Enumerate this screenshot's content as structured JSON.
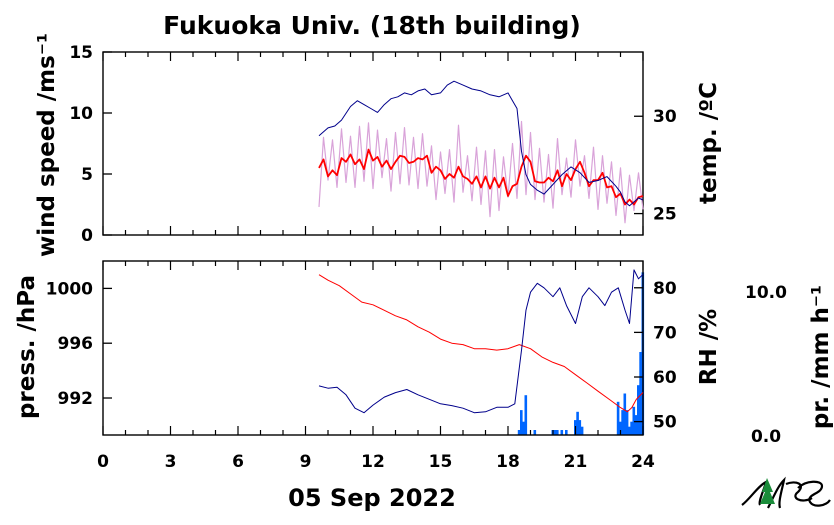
{
  "figure": {
    "title": "Fukuoka Univ. (18th building)",
    "date_label": "05 Sep 2022"
  },
  "colors": {
    "wind_raw": "#d9a3d9",
    "wind_mean": "#ff0000",
    "temperature": "#00008b",
    "pressure": "#ff0000",
    "humidity": "#00008b",
    "precipitation": "#0066ff",
    "axis": "#000000"
  },
  "logo": {
    "text": "NES"
  },
  "chart_data": [
    {
      "type": "line",
      "title": "",
      "x_unit": "hour",
      "xlim": [
        0,
        24
      ],
      "x_ticks": [
        0,
        3,
        6,
        9,
        12,
        15,
        18,
        21,
        24
      ],
      "left_axis": {
        "label": "wind speed /ms⁻¹",
        "ylim": [
          0,
          15
        ],
        "ticks": [
          0,
          5,
          10,
          15
        ]
      },
      "right_axis": {
        "label": "temp. /ºC",
        "ylim": [
          23.9,
          33.3
        ],
        "ticks": [
          25,
          30
        ]
      },
      "series": [
        {
          "axis": "left",
          "style": "raw",
          "x": [
            9.6,
            9.8,
            10.0,
            10.2,
            10.4,
            10.6,
            10.8,
            11.0,
            11.2,
            11.4,
            11.6,
            11.8,
            12.0,
            12.2,
            12.4,
            12.6,
            12.8,
            13.0,
            13.2,
            13.4,
            13.6,
            13.8,
            14.0,
            14.2,
            14.4,
            14.6,
            14.8,
            15.0,
            15.2,
            15.4,
            15.6,
            15.8,
            16.0,
            16.2,
            16.4,
            16.6,
            16.8,
            17.0,
            17.2,
            17.4,
            17.6,
            17.8,
            18.0,
            18.2,
            18.4,
            18.6,
            18.8,
            19.0,
            19.2,
            19.4,
            19.6,
            19.8,
            20.0,
            20.2,
            20.4,
            20.6,
            20.8,
            21.0,
            21.2,
            21.4,
            21.6,
            21.8,
            22.0,
            22.2,
            22.4,
            22.6,
            22.8,
            23.0,
            23.2,
            23.4,
            23.6,
            23.8,
            24.0
          ],
          "values": [
            2.3,
            8.0,
            4.5,
            7.8,
            3.9,
            8.7,
            4.3,
            8.1,
            3.9,
            8.9,
            4.4,
            9.2,
            3.8,
            8.6,
            4.7,
            7.9,
            3.6,
            8.4,
            4.2,
            8.8,
            4.1,
            8.0,
            3.8,
            8.3,
            4.0,
            7.3,
            2.9,
            6.8,
            3.4,
            7.0,
            2.7,
            9.0,
            3.5,
            6.5,
            2.8,
            7.2,
            2.5,
            6.9,
            1.5,
            7.0,
            2.0,
            6.4,
            3.1,
            7.5,
            3.0,
            9.3,
            3.3,
            8.4,
            2.9,
            7.1,
            2.7,
            6.6,
            2.2,
            7.9,
            3.3,
            6.3,
            3.1,
            7.8,
            4.0,
            6.5,
            3.0,
            7.2,
            2.1,
            6.5,
            2.6,
            6.0,
            1.6,
            5.5,
            1.0,
            4.9,
            2.0,
            5.1,
            2.1
          ]
        },
        {
          "axis": "left",
          "style": "mean",
          "x": [
            9.6,
            9.8,
            10.0,
            10.2,
            10.4,
            10.6,
            10.8,
            11.0,
            11.2,
            11.4,
            11.6,
            11.8,
            12.0,
            12.2,
            12.4,
            12.6,
            12.8,
            13.0,
            13.2,
            13.4,
            13.6,
            13.8,
            14.0,
            14.2,
            14.4,
            14.6,
            14.8,
            15.0,
            15.2,
            15.4,
            15.6,
            15.8,
            16.0,
            16.2,
            16.4,
            16.6,
            16.8,
            17.0,
            17.2,
            17.4,
            17.6,
            17.8,
            18.0,
            18.2,
            18.4,
            18.6,
            18.8,
            19.0,
            19.2,
            19.4,
            19.6,
            19.8,
            20.0,
            20.2,
            20.4,
            20.6,
            20.8,
            21.0,
            21.2,
            21.4,
            21.6,
            21.8,
            22.0,
            22.2,
            22.4,
            22.6,
            22.8,
            23.0,
            23.2,
            23.4,
            23.6,
            23.8,
            24.0
          ],
          "values": [
            5.5,
            6.2,
            4.8,
            5.3,
            4.9,
            6.3,
            6.0,
            6.6,
            5.8,
            6.2,
            5.4,
            7.0,
            6.1,
            6.4,
            5.6,
            6.1,
            5.4,
            6.0,
            6.5,
            6.4,
            5.9,
            6.0,
            6.3,
            6.2,
            6.5,
            5.1,
            5.6,
            5.3,
            4.6,
            5.0,
            4.7,
            5.6,
            4.8,
            4.6,
            4.2,
            4.8,
            3.9,
            4.8,
            3.8,
            4.7,
            3.9,
            4.7,
            3.2,
            4.0,
            4.2,
            5.6,
            6.5,
            6.0,
            4.4,
            4.3,
            4.3,
            4.7,
            4.4,
            5.3,
            4.0,
            5.0,
            4.5,
            5.4,
            6.0,
            5.1,
            4.0,
            4.5,
            4.5,
            5.1,
            3.9,
            4.0,
            3.1,
            3.4,
            2.5,
            2.9,
            2.5,
            3.1,
            3.2
          ]
        },
        {
          "axis": "right",
          "style": "temperature",
          "x": [
            9.6,
            10.0,
            10.3,
            10.6,
            11.0,
            11.3,
            11.6,
            11.9,
            12.2,
            12.5,
            12.8,
            13.1,
            13.4,
            13.7,
            14.0,
            14.3,
            14.6,
            15.0,
            15.3,
            15.6,
            16.0,
            16.4,
            16.8,
            17.2,
            17.6,
            18.0,
            18.2,
            18.4,
            18.6,
            18.8,
            19.0,
            19.3,
            19.6,
            20.0,
            20.4,
            20.8,
            21.2,
            21.6,
            22.0,
            22.4,
            22.8,
            23.0,
            23.2,
            23.4,
            23.6,
            23.8,
            24.0
          ],
          "values": [
            29.0,
            29.4,
            29.5,
            29.8,
            30.5,
            30.8,
            30.6,
            30.4,
            30.2,
            30.6,
            30.9,
            31.0,
            31.2,
            31.1,
            31.3,
            31.4,
            31.1,
            31.2,
            31.6,
            31.8,
            31.6,
            31.4,
            31.3,
            31.1,
            31.0,
            31.2,
            30.8,
            30.4,
            28.2,
            27.0,
            26.5,
            26.2,
            26.0,
            26.5,
            27.0,
            27.4,
            27.1,
            26.6,
            26.7,
            26.9,
            26.4,
            26.1,
            25.6,
            25.4,
            25.6,
            25.8,
            25.7
          ]
        }
      ]
    },
    {
      "type": "line",
      "title": "",
      "x_unit": "hour",
      "xlim": [
        0,
        24
      ],
      "x_ticks": [
        0,
        3,
        6,
        9,
        12,
        15,
        18,
        21,
        24
      ],
      "x_tick_labels": [
        "0",
        "3",
        "6",
        "9",
        "12",
        "15",
        "18",
        "21",
        "24"
      ],
      "left_axis": {
        "label": "press. /hPa",
        "ylim": [
          989.3,
          1002.0
        ],
        "ticks": [
          992,
          996,
          1000
        ]
      },
      "right_axis": {
        "label": "RH /%",
        "ylim": [
          47,
          86
        ],
        "ticks": [
          50,
          60,
          70,
          80
        ]
      },
      "precip_axis": {
        "label": "pr. /mm h⁻¹",
        "ylim": [
          0.0,
          10.0
        ],
        "ticks": [
          0.0,
          10.0
        ],
        "tick_labels": [
          "0.0",
          "10.0"
        ]
      },
      "series": [
        {
          "axis": "left",
          "style": "pressure",
          "x": [
            9.6,
            10.0,
            10.5,
            11.0,
            11.5,
            12.0,
            12.5,
            13.0,
            13.5,
            14.0,
            14.5,
            15.0,
            15.5,
            16.0,
            16.5,
            17.0,
            17.5,
            18.0,
            18.5,
            19.0,
            19.5,
            20.0,
            20.5,
            21.0,
            21.5,
            22.0,
            22.5,
            23.0,
            23.3,
            23.5,
            23.7,
            24.0
          ],
          "values": [
            1001.0,
            1000.6,
            1000.2,
            999.6,
            999.0,
            998.8,
            998.4,
            998.0,
            997.7,
            997.2,
            996.8,
            996.3,
            996.0,
            995.9,
            995.6,
            995.6,
            995.5,
            995.6,
            995.9,
            995.6,
            995.0,
            994.6,
            994.3,
            993.7,
            993.1,
            992.5,
            991.9,
            991.3,
            991.0,
            991.3,
            991.9,
            992.4
          ]
        },
        {
          "axis": "right",
          "style": "humidity",
          "x": [
            9.6,
            10.0,
            10.4,
            10.8,
            11.2,
            11.6,
            12.0,
            12.5,
            13.0,
            13.5,
            14.0,
            14.5,
            15.0,
            15.5,
            16.0,
            16.5,
            17.0,
            17.5,
            18.0,
            18.3,
            18.6,
            18.8,
            19.0,
            19.3,
            19.6,
            20.0,
            20.3,
            20.6,
            21.0,
            21.3,
            21.6,
            22.0,
            22.3,
            22.6,
            22.9,
            23.2,
            23.4,
            23.6,
            23.8,
            24.0
          ],
          "values": [
            58.0,
            57.5,
            57.7,
            56.0,
            53.0,
            52.0,
            53.7,
            55.5,
            56.5,
            57.2,
            56.0,
            55.0,
            54.0,
            53.6,
            53.0,
            52.0,
            52.2,
            53.2,
            53.2,
            54.0,
            66.0,
            75.0,
            79.0,
            81.0,
            80.0,
            78.0,
            80.0,
            76.0,
            72.0,
            78.0,
            80.0,
            78.0,
            76.0,
            79.0,
            80.0,
            75.0,
            72.0,
            84.0,
            82.0,
            83.0
          ]
        },
        {
          "axis": "precip",
          "style": "precipitation_bars",
          "x": [
            18.5,
            18.6,
            18.7,
            18.8,
            19.2,
            20.0,
            20.1,
            20.2,
            20.4,
            20.6,
            21.0,
            21.1,
            21.2,
            21.3,
            22.9,
            23.0,
            23.1,
            23.2,
            23.3,
            23.4,
            23.5,
            23.6,
            23.7,
            23.8,
            23.9,
            24.0
          ],
          "values": [
            0.3,
            1.5,
            0.8,
            2.4,
            0.3,
            0.3,
            0.3,
            0.3,
            0.3,
            0.3,
            0.9,
            1.4,
            0.9,
            0.5,
            2.0,
            0.8,
            1.5,
            2.5,
            1.5,
            0.5,
            0.8,
            1.7,
            1.2,
            3.0,
            5.0,
            9.8
          ]
        }
      ]
    }
  ]
}
